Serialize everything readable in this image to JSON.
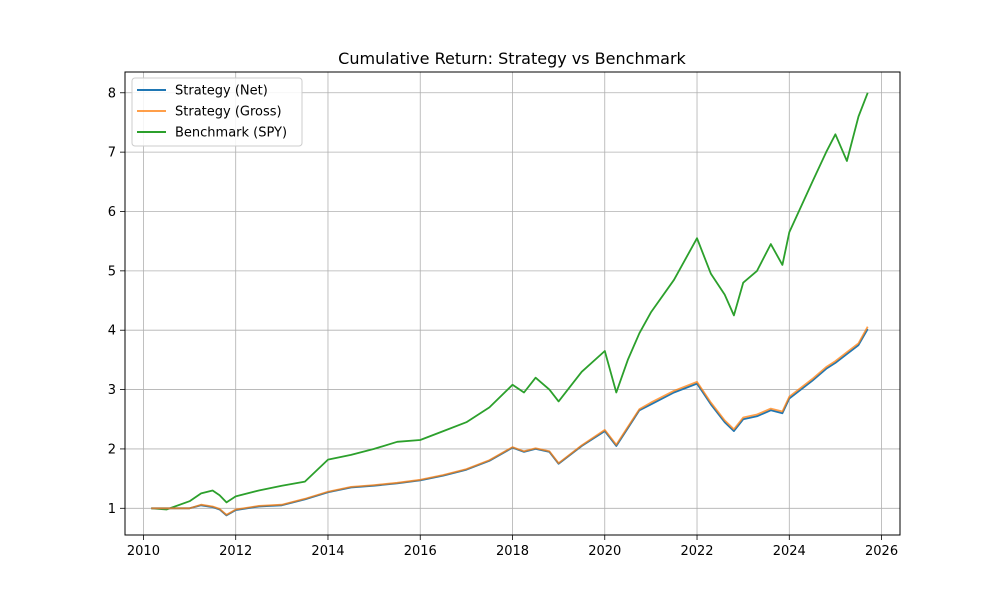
{
  "chart_data": {
    "type": "line",
    "title": "Cumulative Return: Strategy vs Benchmark",
    "xlabel": "",
    "ylabel": "",
    "xlim": [
      2009.6,
      2026.4
    ],
    "ylim": [
      0.55,
      8.35
    ],
    "x_ticks": [
      2010,
      2012,
      2014,
      2016,
      2018,
      2020,
      2022,
      2024,
      2026
    ],
    "x_tick_labels": [
      "2010",
      "2012",
      "2014",
      "2016",
      "2018",
      "2020",
      "2022",
      "2024",
      "2026"
    ],
    "y_ticks": [
      1,
      2,
      3,
      4,
      5,
      6,
      7,
      8
    ],
    "y_tick_labels": [
      "1",
      "2",
      "3",
      "4",
      "5",
      "6",
      "7",
      "8"
    ],
    "grid": true,
    "legend_position": "top-left",
    "x": [
      2010.17,
      2010.5,
      2011.0,
      2011.25,
      2011.5,
      2011.65,
      2011.8,
      2012.0,
      2012.5,
      2013.0,
      2013.5,
      2014.0,
      2014.5,
      2015.0,
      2015.5,
      2016.0,
      2016.5,
      2017.0,
      2017.5,
      2018.0,
      2018.25,
      2018.5,
      2018.8,
      2019.0,
      2019.5,
      2020.0,
      2020.25,
      2020.5,
      2020.75,
      2021.0,
      2021.5,
      2022.0,
      2022.3,
      2022.6,
      2022.8,
      2023.0,
      2023.3,
      2023.6,
      2023.85,
      2024.0,
      2024.5,
      2024.8,
      2025.0,
      2025.25,
      2025.5,
      2025.7
    ],
    "series": [
      {
        "name": "Strategy (Net)",
        "color": "#1f77b4",
        "values": [
          1.0,
          1.0,
          1.0,
          1.05,
          1.02,
          0.98,
          0.88,
          0.97,
          1.03,
          1.05,
          1.15,
          1.27,
          1.35,
          1.38,
          1.42,
          1.47,
          1.55,
          1.65,
          1.8,
          2.02,
          1.95,
          2.0,
          1.95,
          1.75,
          2.05,
          2.3,
          2.05,
          2.35,
          2.65,
          2.75,
          2.95,
          3.1,
          2.75,
          2.45,
          2.3,
          2.5,
          2.55,
          2.65,
          2.6,
          2.85,
          3.15,
          3.35,
          3.45,
          3.6,
          3.75,
          4.02
        ]
      },
      {
        "name": "Strategy (Gross)",
        "color": "#ff7f0e",
        "values": [
          1.0,
          1.0,
          1.0,
          1.06,
          1.03,
          0.99,
          0.89,
          0.98,
          1.04,
          1.06,
          1.16,
          1.28,
          1.36,
          1.39,
          1.43,
          1.48,
          1.56,
          1.66,
          1.81,
          2.03,
          1.96,
          2.01,
          1.96,
          1.76,
          2.06,
          2.32,
          2.07,
          2.37,
          2.67,
          2.78,
          2.98,
          3.13,
          2.78,
          2.48,
          2.33,
          2.53,
          2.58,
          2.68,
          2.63,
          2.88,
          3.18,
          3.38,
          3.48,
          3.63,
          3.78,
          4.06
        ]
      },
      {
        "name": "Benchmark (SPY)",
        "color": "#2ca02c",
        "values": [
          1.0,
          0.98,
          1.12,
          1.25,
          1.3,
          1.22,
          1.1,
          1.2,
          1.3,
          1.38,
          1.45,
          1.82,
          1.9,
          2.0,
          2.12,
          2.15,
          2.3,
          2.45,
          2.7,
          3.08,
          2.95,
          3.2,
          3.0,
          2.8,
          3.3,
          3.65,
          2.95,
          3.5,
          3.95,
          4.3,
          4.85,
          5.55,
          4.95,
          4.6,
          4.25,
          4.8,
          5.0,
          5.45,
          5.1,
          5.65,
          6.5,
          7.0,
          7.3,
          6.85,
          7.6,
          8.0
        ]
      }
    ]
  }
}
